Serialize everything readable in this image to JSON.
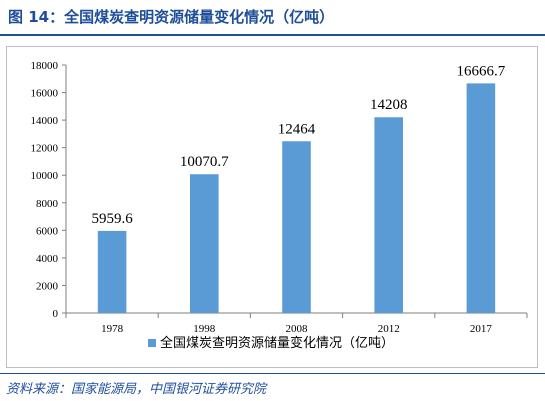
{
  "figure": {
    "title": "图 14：全国煤炭查明资源储量变化情况（亿吨）",
    "source": "资料来源：国家能源局，中国银河证券研究院"
  },
  "chart_data": {
    "type": "bar",
    "categories": [
      "1978",
      "1998",
      "2008",
      "2012",
      "2017"
    ],
    "series": [
      {
        "name": "全国煤炭查明资源储量变化情况（亿吨）",
        "values": [
          5959.6,
          10070.7,
          12464,
          14208,
          16666.7
        ],
        "value_labels": [
          "5959.6",
          "10070.7",
          "12464",
          "14208",
          "16666.7"
        ]
      }
    ],
    "ylim": [
      0,
      18000
    ],
    "yticks": [
      0,
      2000,
      4000,
      6000,
      8000,
      10000,
      12000,
      14000,
      16000,
      18000
    ],
    "grid": false,
    "legend": "bottom-center",
    "colors": {
      "bar": "#5b9bd5",
      "axis": "#7f7f7f",
      "text": "#000000",
      "title": "#1f4e9a"
    }
  }
}
